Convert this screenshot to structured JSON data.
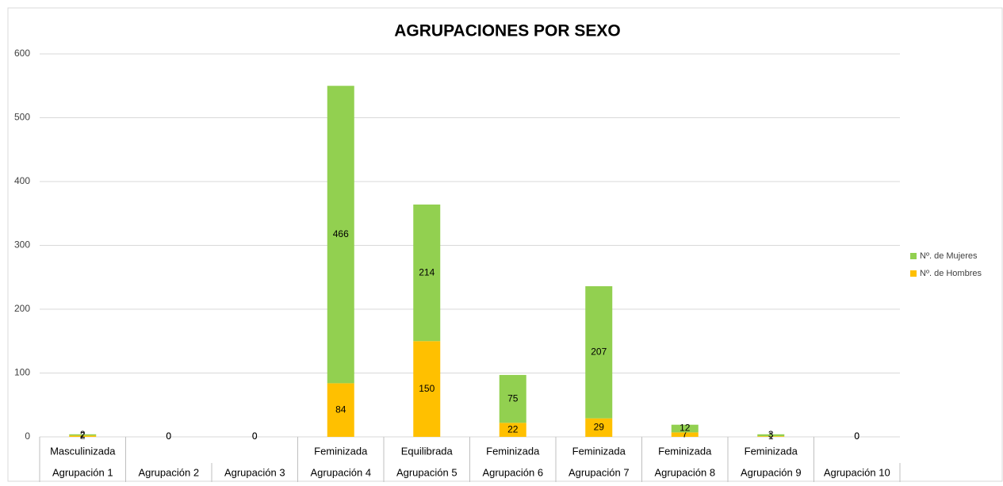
{
  "chart_data": {
    "type": "stacked_bar",
    "title": "AGRUPACIONES POR SEXO",
    "categories": [
      "Agrupación 1",
      "Agrupación 2",
      "Agrupación 3",
      "Agrupación 4",
      "Agrupación 5",
      "Agrupación 6",
      "Agrupación 7",
      "Agrupación 8",
      "Agrupación 9",
      "Agrupación 10"
    ],
    "group_labels": [
      "Masculinizada",
      null,
      null,
      "Feminizada",
      "Equilibrada",
      "Feminizada",
      "Feminizada",
      "Feminizada",
      "Feminizada",
      null
    ],
    "series": [
      {
        "name": "Nº. de Hombres",
        "color": "#ffc000",
        "values": [
          2,
          0,
          0,
          84,
          150,
          22,
          29,
          7,
          1,
          0
        ]
      },
      {
        "name": "Nº. de Mujeres",
        "color": "#92d050",
        "values": [
          2,
          0,
          0,
          466,
          214,
          75,
          207,
          12,
          3,
          0
        ]
      }
    ],
    "ylim": [
      0,
      600
    ],
    "yticks": [
      0,
      100,
      200,
      300,
      400,
      500,
      600
    ],
    "grid": true,
    "legend": "right"
  }
}
